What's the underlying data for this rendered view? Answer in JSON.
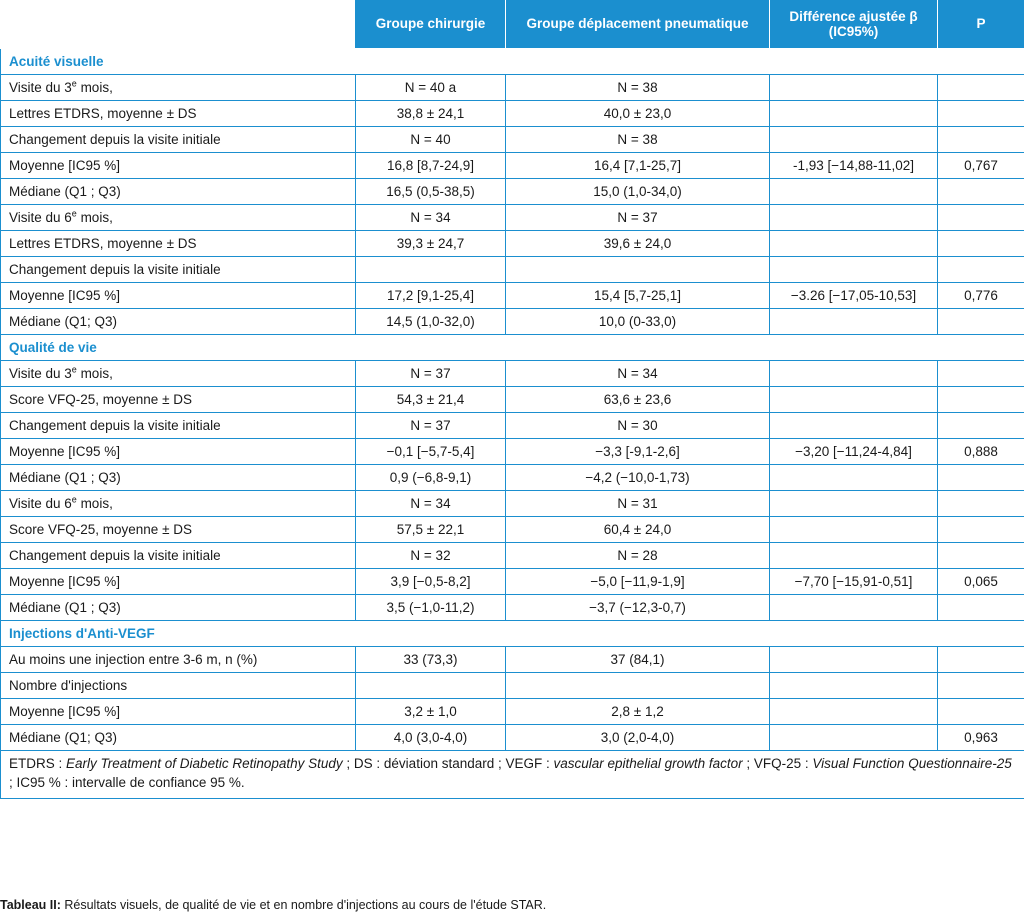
{
  "header": {
    "col_label": "",
    "col_surgery": "Groupe chirurgie",
    "col_pneumatic": "Groupe déplacement pneumatique",
    "col_diff": "Différence ajustée β (IC95%)",
    "col_p": "P"
  },
  "sections": {
    "acuity": "Acuité visuelle",
    "quality": "Qualité de vie",
    "injections": "Injections d'Anti-VEGF"
  },
  "acuity_rows": [
    {
      "label": "Visite du 3",
      "sup": "e",
      "label_suffix": " mois,",
      "surgery": "N = 40 a",
      "pneumatic": "N = 38",
      "diff": "",
      "p": ""
    },
    {
      "label": "Lettres ETDRS, moyenne ± DS",
      "surgery": "38,8 ± 24,1",
      "pneumatic": "40,0 ± 23,0",
      "diff": "",
      "p": ""
    },
    {
      "label": "Changement depuis la visite initiale",
      "surgery": "N = 40",
      "pneumatic": "N = 38",
      "diff": "",
      "p": ""
    },
    {
      "label": "Moyenne [IC95 %]",
      "surgery": "16,8 [8,7-24,9]",
      "pneumatic": "16,4 [7,1-25,7]",
      "diff": "-1,93 [−14,88-11,02]",
      "p": "0,767"
    },
    {
      "label": "Médiane (Q1 ; Q3)",
      "surgery": "16,5 (0,5-38,5)",
      "pneumatic": "15,0 (1,0-34,0)",
      "diff": "",
      "p": ""
    },
    {
      "label": "Visite du 6",
      "sup": "e",
      "label_suffix": " mois,",
      "surgery": "N = 34",
      "pneumatic": "N = 37",
      "diff": "",
      "p": ""
    },
    {
      "label": "Lettres ETDRS, moyenne ± DS",
      "surgery": "39,3 ± 24,7",
      "pneumatic": "39,6 ± 24,0",
      "diff": "",
      "p": ""
    },
    {
      "label": "Changement depuis la visite initiale",
      "surgery": "",
      "pneumatic": "",
      "diff": "",
      "p": ""
    },
    {
      "label": "Moyenne [IC95 %]",
      "surgery": "17,2 [9,1-25,4]",
      "pneumatic": "15,4 [5,7-25,1]",
      "diff": "−3.26 [−17,05-10,53]",
      "p": "0,776"
    },
    {
      "label": "Médiane (Q1; Q3)",
      "surgery": "14,5 (1,0-32,0)",
      "pneumatic": "10,0 (0-33,0)",
      "diff": "",
      "p": ""
    }
  ],
  "quality_rows": [
    {
      "label": "Visite du 3",
      "sup": "e",
      "label_suffix": " mois,",
      "surgery": "N = 37",
      "pneumatic": "N = 34",
      "diff": "",
      "p": ""
    },
    {
      "label": "Score VFQ-25, moyenne ± DS",
      "surgery": "54,3 ± 21,4",
      "pneumatic": "63,6 ± 23,6",
      "diff": "",
      "p": ""
    },
    {
      "label": "Changement depuis la visite initiale",
      "surgery": "N = 37",
      "pneumatic": "N = 30",
      "diff": "",
      "p": ""
    },
    {
      "label": "Moyenne [IC95 %]",
      "surgery": "−0,1 [−5,7-5,4]",
      "pneumatic": "−3,3 [-9,1-2,6]",
      "diff": "−3,20 [−11,24-4,84]",
      "p": "0,888"
    },
    {
      "label": "Médiane (Q1 ; Q3)",
      "surgery": "0,9 (−6,8-9,1)",
      "pneumatic": "−4,2 (−10,0-1,73)",
      "diff": "",
      "p": ""
    },
    {
      "label": "Visite du 6",
      "sup": "e",
      "label_suffix": " mois,",
      "surgery": "N = 34",
      "pneumatic": "N = 31",
      "diff": "",
      "p": ""
    },
    {
      "label": "Score VFQ-25, moyenne ± DS",
      "surgery": "57,5 ± 22,1",
      "pneumatic": "60,4 ± 24,0",
      "diff": "",
      "p": ""
    },
    {
      "label": "Changement depuis la visite initiale",
      "surgery": "N = 32",
      "pneumatic": "N = 28",
      "diff": "",
      "p": ""
    },
    {
      "label": "Moyenne [IC95 %]",
      "surgery": "3,9 [−0,5-8,2]",
      "pneumatic": "−5,0 [−11,9-1,9]",
      "diff": "−7,70 [−15,91-0,51]",
      "p": "0,065"
    },
    {
      "label": "Médiane (Q1 ; Q3)",
      "surgery": "3,5 (−1,0-11,2)",
      "pneumatic": "−3,7 (−12,3-0,7)",
      "diff": "",
      "p": ""
    }
  ],
  "injection_rows": [
    {
      "label": "Au moins une injection entre 3-6 m, n (%)",
      "surgery": "33 (73,3)",
      "pneumatic": "37 (84,1)",
      "diff": "",
      "p": ""
    },
    {
      "label": "Nombre d'injections",
      "surgery": "",
      "pneumatic": "",
      "diff": "",
      "p": ""
    },
    {
      "label": "Moyenne [IC95 %]",
      "surgery": "3,2 ± 1,0",
      "pneumatic": "2,8 ± 1,2",
      "diff": "",
      "p": ""
    },
    {
      "label": "Médiane (Q1; Q3)",
      "surgery": "4,0 (3,0-4,0)",
      "pneumatic": "3,0 (2,0-4,0)",
      "diff": "",
      "p": "0,963"
    }
  ],
  "footnote": {
    "parts": [
      {
        "t": "ETDRS : ",
        "i": false
      },
      {
        "t": "Early Treatment of Diabetic Retinopathy Study",
        "i": true
      },
      {
        "t": " ; DS : déviation standard ; VEGF : ",
        "i": false
      },
      {
        "t": "vascular epithelial growth factor",
        "i": true
      },
      {
        "t": " ; VFQ-25 : ",
        "i": false
      },
      {
        "t": "Visual Function Questionnaire-25",
        "i": true
      },
      {
        "t": " ; IC95 % : intervalle de confiance 95 %.",
        "i": false
      }
    ]
  },
  "caption": {
    "label": "Tableau II:",
    "text": " Résultats visuels, de qualité de vie et en nombre d'injections au cours de l'étude STAR."
  },
  "colors": {
    "accent": "#1b8fcf"
  }
}
